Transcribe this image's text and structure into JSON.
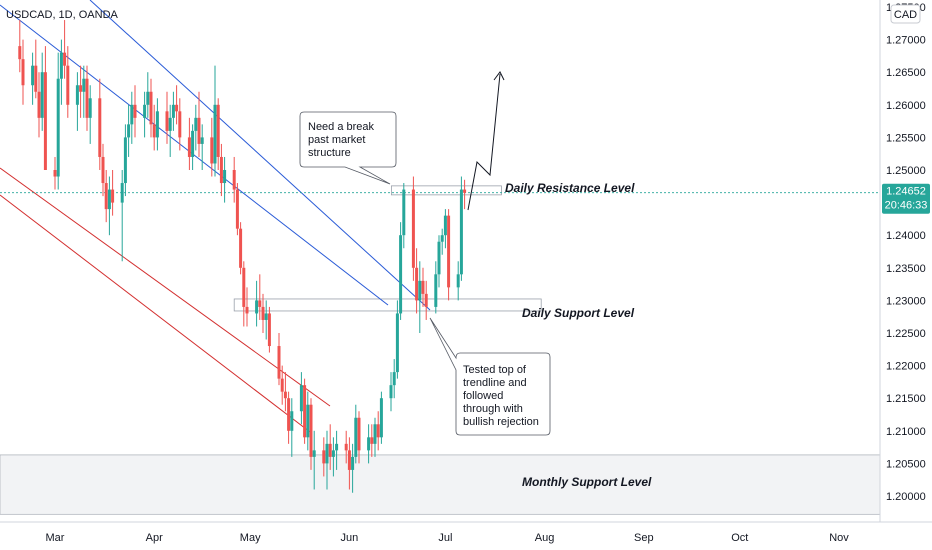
{
  "symbol": "USDCAD, 1D, OANDA",
  "currency_button": "CAD",
  "price_label": {
    "value": "1.24652",
    "countdown": "20:46:33"
  },
  "annotations": {
    "daily_resistance": "Daily Resistance Level",
    "daily_support": "Daily Support Level",
    "monthly_support": "Monthly Support Level",
    "callout_break": [
      "Need a break",
      "past market",
      "structure"
    ],
    "callout_tested": [
      "Tested top of",
      "trendline and",
      "followed",
      "through with",
      "bullish rejection"
    ]
  },
  "colors": {
    "bull": "#26a69a",
    "bear": "#ef5350",
    "channel_blue": "#2a5bd7",
    "channel_red": "#d32f2f",
    "price_line": "#26a69a",
    "axis_text": "#131722"
  },
  "chart_data": {
    "type": "candlestick",
    "instrument": "USDCAD",
    "timeframe": "1D",
    "source": "OANDA",
    "x_ticks": [
      "Mar",
      "Apr",
      "May",
      "Jun",
      "Jul",
      "Aug",
      "Sep",
      "Oct",
      "Nov"
    ],
    "y_ticks": [
      "1.20000",
      "1.20500",
      "1.21000",
      "1.21500",
      "1.22000",
      "1.22500",
      "1.23000",
      "1.23500",
      "1.24000",
      "1.24500",
      "1.25000",
      "1.25500",
      "1.26000",
      "1.26500",
      "1.27000",
      "1.27500"
    ],
    "ylim": [
      1.195,
      1.276
    ],
    "last_price": 1.24652,
    "levels": {
      "daily_resistance": 1.2468,
      "daily_support": 1.2293,
      "monthly_support_zone": [
        1.1972,
        1.2063
      ]
    },
    "candles": [
      {
        "d": "2021-02-18",
        "o": 1.269,
        "h": 1.273,
        "l": 1.265,
        "c": 1.267
      },
      {
        "d": "2021-02-19",
        "o": 1.267,
        "h": 1.27,
        "l": 1.26,
        "c": 1.263
      },
      {
        "d": "2021-02-22",
        "o": 1.263,
        "h": 1.268,
        "l": 1.26,
        "c": 1.266
      },
      {
        "d": "2021-02-23",
        "o": 1.266,
        "h": 1.27,
        "l": 1.261,
        "c": 1.262
      },
      {
        "d": "2021-02-24",
        "o": 1.262,
        "h": 1.265,
        "l": 1.255,
        "c": 1.258
      },
      {
        "d": "2021-02-25",
        "o": 1.258,
        "h": 1.268,
        "l": 1.256,
        "c": 1.265
      },
      {
        "d": "2021-02-26",
        "o": 1.265,
        "h": 1.269,
        "l": 1.25,
        "c": 1.25
      },
      {
        "d": "2021-03-01",
        "o": 1.25,
        "h": 1.252,
        "l": 1.247,
        "c": 1.249
      },
      {
        "d": "2021-03-02",
        "o": 1.249,
        "h": 1.268,
        "l": 1.247,
        "c": 1.264
      },
      {
        "d": "2021-03-03",
        "o": 1.264,
        "h": 1.27,
        "l": 1.26,
        "c": 1.268
      },
      {
        "d": "2021-03-04",
        "o": 1.268,
        "h": 1.273,
        "l": 1.264,
        "c": 1.266
      },
      {
        "d": "2021-03-05",
        "o": 1.266,
        "h": 1.269,
        "l": 1.258,
        "c": 1.26
      },
      {
        "d": "2021-03-08",
        "o": 1.26,
        "h": 1.265,
        "l": 1.256,
        "c": 1.263
      },
      {
        "d": "2021-03-09",
        "o": 1.263,
        "h": 1.266,
        "l": 1.258,
        "c": 1.262
      },
      {
        "d": "2021-03-10",
        "o": 1.262,
        "h": 1.266,
        "l": 1.258,
        "c": 1.264
      },
      {
        "d": "2021-03-11",
        "o": 1.264,
        "h": 1.266,
        "l": 1.256,
        "c": 1.258
      },
      {
        "d": "2021-03-12",
        "o": 1.258,
        "h": 1.263,
        "l": 1.254,
        "c": 1.261
      },
      {
        "d": "2021-03-15",
        "o": 1.261,
        "h": 1.264,
        "l": 1.25,
        "c": 1.252
      },
      {
        "d": "2021-03-16",
        "o": 1.252,
        "h": 1.254,
        "l": 1.246,
        "c": 1.248
      },
      {
        "d": "2021-03-17",
        "o": 1.248,
        "h": 1.25,
        "l": 1.242,
        "c": 1.244
      },
      {
        "d": "2021-03-18",
        "o": 1.244,
        "h": 1.249,
        "l": 1.24,
        "c": 1.247
      },
      {
        "d": "2021-03-19",
        "o": 1.247,
        "h": 1.25,
        "l": 1.243,
        "c": 1.245
      },
      {
        "d": "2021-03-22",
        "o": 1.245,
        "h": 1.25,
        "l": 1.236,
        "c": 1.248
      },
      {
        "d": "2021-03-23",
        "o": 1.248,
        "h": 1.257,
        "l": 1.246,
        "c": 1.255
      },
      {
        "d": "2021-03-24",
        "o": 1.255,
        "h": 1.26,
        "l": 1.252,
        "c": 1.257
      },
      {
        "d": "2021-03-25",
        "o": 1.257,
        "h": 1.262,
        "l": 1.254,
        "c": 1.26
      },
      {
        "d": "2021-03-26",
        "o": 1.26,
        "h": 1.263,
        "l": 1.255,
        "c": 1.258
      },
      {
        "d": "2021-03-29",
        "o": 1.258,
        "h": 1.262,
        "l": 1.255,
        "c": 1.26
      },
      {
        "d": "2021-03-30",
        "o": 1.26,
        "h": 1.265,
        "l": 1.258,
        "c": 1.262
      },
      {
        "d": "2021-03-31",
        "o": 1.262,
        "h": 1.264,
        "l": 1.255,
        "c": 1.257
      },
      {
        "d": "2021-04-01",
        "o": 1.257,
        "h": 1.26,
        "l": 1.253,
        "c": 1.255
      },
      {
        "d": "2021-04-02",
        "o": 1.255,
        "h": 1.261,
        "l": 1.253,
        "c": 1.259
      },
      {
        "d": "2021-04-05",
        "o": 1.259,
        "h": 1.262,
        "l": 1.254,
        "c": 1.256
      },
      {
        "d": "2021-04-06",
        "o": 1.256,
        "h": 1.26,
        "l": 1.252,
        "c": 1.258
      },
      {
        "d": "2021-04-07",
        "o": 1.258,
        "h": 1.262,
        "l": 1.256,
        "c": 1.26
      },
      {
        "d": "2021-04-08",
        "o": 1.26,
        "h": 1.263,
        "l": 1.257,
        "c": 1.259
      },
      {
        "d": "2021-04-09",
        "o": 1.259,
        "h": 1.261,
        "l": 1.253,
        "c": 1.255
      },
      {
        "d": "2021-04-12",
        "o": 1.255,
        "h": 1.258,
        "l": 1.25,
        "c": 1.252
      },
      {
        "d": "2021-04-13",
        "o": 1.252,
        "h": 1.257,
        "l": 1.25,
        "c": 1.256
      },
      {
        "d": "2021-04-14",
        "o": 1.256,
        "h": 1.26,
        "l": 1.253,
        "c": 1.258
      },
      {
        "d": "2021-04-15",
        "o": 1.258,
        "h": 1.262,
        "l": 1.252,
        "c": 1.254
      },
      {
        "d": "2021-04-16",
        "o": 1.254,
        "h": 1.257,
        "l": 1.25,
        "c": 1.255
      },
      {
        "d": "2021-04-19",
        "o": 1.255,
        "h": 1.258,
        "l": 1.249,
        "c": 1.251
      },
      {
        "d": "2021-04-20",
        "o": 1.251,
        "h": 1.266,
        "l": 1.249,
        "c": 1.26
      },
      {
        "d": "2021-04-21",
        "o": 1.26,
        "h": 1.261,
        "l": 1.25,
        "c": 1.252
      },
      {
        "d": "2021-04-22",
        "o": 1.252,
        "h": 1.254,
        "l": 1.246,
        "c": 1.248
      },
      {
        "d": "2021-04-23",
        "o": 1.248,
        "h": 1.252,
        "l": 1.245,
        "c": 1.25
      },
      {
        "d": "2021-04-26",
        "o": 1.25,
        "h": 1.252,
        "l": 1.245,
        "c": 1.247
      },
      {
        "d": "2021-04-27",
        "o": 1.247,
        "h": 1.248,
        "l": 1.24,
        "c": 1.241
      },
      {
        "d": "2021-04-28",
        "o": 1.241,
        "h": 1.242,
        "l": 1.234,
        "c": 1.235
      },
      {
        "d": "2021-04-29",
        "o": 1.235,
        "h": 1.236,
        "l": 1.226,
        "c": 1.229
      },
      {
        "d": "2021-04-30",
        "o": 1.229,
        "h": 1.232,
        "l": 1.226,
        "c": 1.228
      },
      {
        "d": "2021-05-03",
        "o": 1.228,
        "h": 1.233,
        "l": 1.226,
        "c": 1.23
      },
      {
        "d": "2021-05-04",
        "o": 1.23,
        "h": 1.234,
        "l": 1.227,
        "c": 1.229
      },
      {
        "d": "2021-05-05",
        "o": 1.229,
        "h": 1.231,
        "l": 1.225,
        "c": 1.227
      },
      {
        "d": "2021-05-06",
        "o": 1.227,
        "h": 1.23,
        "l": 1.224,
        "c": 1.228
      },
      {
        "d": "2021-05-07",
        "o": 1.228,
        "h": 1.229,
        "l": 1.222,
        "c": 1.223
      },
      {
        "d": "2021-05-10",
        "o": 1.223,
        "h": 1.225,
        "l": 1.217,
        "c": 1.218
      },
      {
        "d": "2021-05-11",
        "o": 1.218,
        "h": 1.22,
        "l": 1.214,
        "c": 1.216
      },
      {
        "d": "2021-05-12",
        "o": 1.216,
        "h": 1.219,
        "l": 1.213,
        "c": 1.215
      },
      {
        "d": "2021-05-13",
        "o": 1.215,
        "h": 1.216,
        "l": 1.208,
        "c": 1.21
      },
      {
        "d": "2021-05-14",
        "o": 1.21,
        "h": 1.215,
        "l": 1.206,
        "c": 1.213
      },
      {
        "d": "2021-05-17",
        "o": 1.213,
        "h": 1.219,
        "l": 1.211,
        "c": 1.217
      },
      {
        "d": "2021-05-18",
        "o": 1.217,
        "h": 1.218,
        "l": 1.208,
        "c": 1.209
      },
      {
        "d": "2021-05-19",
        "o": 1.209,
        "h": 1.216,
        "l": 1.207,
        "c": 1.214
      },
      {
        "d": "2021-05-20",
        "o": 1.214,
        "h": 1.215,
        "l": 1.204,
        "c": 1.206
      },
      {
        "d": "2021-05-21",
        "o": 1.206,
        "h": 1.21,
        "l": 1.201,
        "c": 1.207
      },
      {
        "d": "2021-05-24",
        "o": 1.207,
        "h": 1.209,
        "l": 1.203,
        "c": 1.205
      },
      {
        "d": "2021-05-25",
        "o": 1.205,
        "h": 1.21,
        "l": 1.201,
        "c": 1.208
      },
      {
        "d": "2021-05-26",
        "o": 1.208,
        "h": 1.211,
        "l": 1.204,
        "c": 1.206
      },
      {
        "d": "2021-05-27",
        "o": 1.206,
        "h": 1.209,
        "l": 1.203,
        "c": 1.207
      },
      {
        "d": "2021-05-28",
        "o": 1.207,
        "h": 1.21,
        "l": 1.204,
        "c": 1.208
      },
      {
        "d": "2021-05-31",
        "o": 1.208,
        "h": 1.21,
        "l": 1.205,
        "c": 1.207
      },
      {
        "d": "2021-06-01",
        "o": 1.207,
        "h": 1.209,
        "l": 1.201,
        "c": 1.204
      },
      {
        "d": "2021-06-02",
        "o": 1.204,
        "h": 1.208,
        "l": 1.2005,
        "c": 1.206
      },
      {
        "d": "2021-06-03",
        "o": 1.206,
        "h": 1.214,
        "l": 1.205,
        "c": 1.212
      },
      {
        "d": "2021-06-04",
        "o": 1.212,
        "h": 1.213,
        "l": 1.205,
        "c": 1.207
      },
      {
        "d": "2021-06-07",
        "o": 1.207,
        "h": 1.211,
        "l": 1.205,
        "c": 1.209
      },
      {
        "d": "2021-06-08",
        "o": 1.209,
        "h": 1.211,
        "l": 1.206,
        "c": 1.208
      },
      {
        "d": "2021-06-09",
        "o": 1.208,
        "h": 1.212,
        "l": 1.206,
        "c": 1.211
      },
      {
        "d": "2021-06-10",
        "o": 1.211,
        "h": 1.213,
        "l": 1.207,
        "c": 1.209
      },
      {
        "d": "2021-06-11",
        "o": 1.209,
        "h": 1.216,
        "l": 1.208,
        "c": 1.215
      },
      {
        "d": "2021-06-14",
        "o": 1.215,
        "h": 1.219,
        "l": 1.213,
        "c": 1.217
      },
      {
        "d": "2021-06-15",
        "o": 1.217,
        "h": 1.221,
        "l": 1.215,
        "c": 1.219
      },
      {
        "d": "2021-06-16",
        "o": 1.219,
        "h": 1.23,
        "l": 1.218,
        "c": 1.228
      },
      {
        "d": "2021-06-17",
        "o": 1.228,
        "h": 1.242,
        "l": 1.227,
        "c": 1.24
      },
      {
        "d": "2021-06-18",
        "o": 1.24,
        "h": 1.248,
        "l": 1.238,
        "c": 1.247
      },
      {
        "d": "2021-06-21",
        "o": 1.247,
        "h": 1.249,
        "l": 1.233,
        "c": 1.235
      },
      {
        "d": "2021-06-22",
        "o": 1.235,
        "h": 1.238,
        "l": 1.228,
        "c": 1.23
      },
      {
        "d": "2021-06-23",
        "o": 1.23,
        "h": 1.236,
        "l": 1.225,
        "c": 1.233
      },
      {
        "d": "2021-06-24",
        "o": 1.233,
        "h": 1.235,
        "l": 1.229,
        "c": 1.231
      },
      {
        "d": "2021-06-25",
        "o": 1.231,
        "h": 1.233,
        "l": 1.227,
        "c": 1.229
      },
      {
        "d": "2021-06-28",
        "o": 1.229,
        "h": 1.236,
        "l": 1.228,
        "c": 1.234
      },
      {
        "d": "2021-06-29",
        "o": 1.234,
        "h": 1.24,
        "l": 1.232,
        "c": 1.239
      },
      {
        "d": "2021-06-30",
        "o": 1.239,
        "h": 1.241,
        "l": 1.237,
        "c": 1.24
      },
      {
        "d": "2021-07-01",
        "o": 1.24,
        "h": 1.244,
        "l": 1.238,
        "c": 1.243
      },
      {
        "d": "2021-07-02",
        "o": 1.243,
        "h": 1.244,
        "l": 1.23,
        "c": 1.232
      },
      {
        "d": "2021-07-05",
        "o": 1.232,
        "h": 1.236,
        "l": 1.23,
        "c": 1.234
      },
      {
        "d": "2021-07-06",
        "o": 1.234,
        "h": 1.249,
        "l": 1.233,
        "c": 1.247
      },
      {
        "d": "2021-07-07",
        "o": 1.247,
        "h": 1.2485,
        "l": 1.244,
        "c": 1.2465
      }
    ]
  }
}
